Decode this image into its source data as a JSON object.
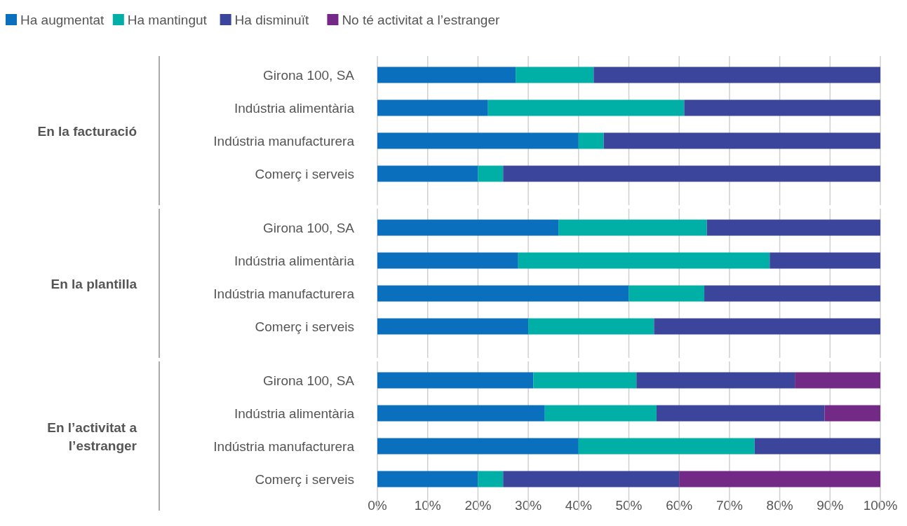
{
  "chart_data": {
    "type": "bar",
    "orientation": "horizontal",
    "stacked": true,
    "categories": [
      "Girona 100, SA",
      "Indústria alimentària",
      "Indústria manufacturera",
      "Comerç i serveis",
      "Girona 100, SA",
      "Indústria alimentària",
      "Indústria manufacturera",
      "Comerç i serveis",
      "Girona 100, SA",
      "Indústria alimentària",
      "Indústria manufacturera",
      "Comerç i serveis"
    ],
    "series": [
      {
        "name": "Ha augmentat",
        "color": "#0a6fbd",
        "values": [
          27.5,
          22,
          40,
          20,
          36,
          28,
          50,
          30,
          31,
          33.3,
          40,
          20
        ]
      },
      {
        "name": "Ha mantingut",
        "color": "#00afa6",
        "values": [
          15.5,
          39,
          5,
          5,
          29.5,
          50,
          15,
          25,
          20.5,
          22.2,
          35,
          5
        ]
      },
      {
        "name": "Ha disminuït",
        "color": "#3a459b",
        "values": [
          57,
          39,
          55,
          75,
          34.5,
          22,
          35,
          45,
          31.5,
          33.4,
          25,
          35
        ]
      },
      {
        "name": "No té activitat a l’estranger",
        "color": "#722a86",
        "values": [
          null,
          null,
          null,
          null,
          null,
          null,
          null,
          null,
          17,
          11.1,
          null,
          40
        ]
      }
    ],
    "annotations": [
      "En la facturació",
      "En la plantilla",
      "En l’activitat a l’estranger"
    ],
    "xlim": [
      0,
      100
    ],
    "xticks": [
      {
        "value": 0,
        "label": "0%"
      },
      {
        "value": 10,
        "label": "10%"
      },
      {
        "value": 20,
        "label": "20%"
      },
      {
        "value": 30,
        "label": "30%"
      },
      {
        "value": 40,
        "label": "40%"
      },
      {
        "value": 50,
        "label": "50%"
      },
      {
        "value": 60,
        "label": "60%"
      },
      {
        "value": 70,
        "label": "70%"
      },
      {
        "value": 80,
        "label": "80%"
      },
      {
        "value": 90,
        "label": "90%"
      },
      {
        "value": 100,
        "label": "100%"
      }
    ],
    "grid": "x",
    "legend": "top left"
  }
}
